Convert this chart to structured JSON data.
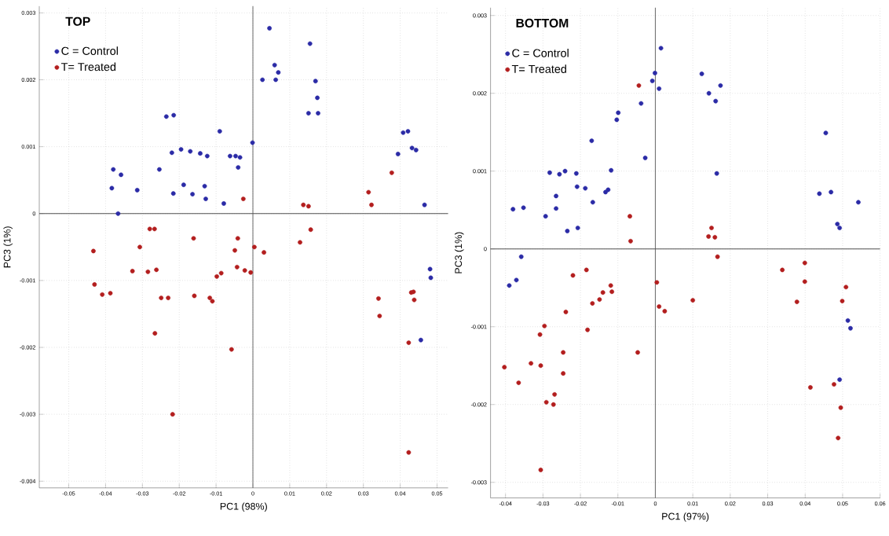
{
  "chart_data": [
    {
      "type": "scatter",
      "title": "TOP",
      "xlabel": "PC1 (98%)",
      "ylabel": "PC3 (1%)",
      "xlim": [
        -0.058,
        0.053
      ],
      "ylim": [
        -0.0041,
        0.0031
      ],
      "xticks": [
        -0.05,
        -0.04,
        -0.03,
        -0.02,
        -0.01,
        0,
        0.01,
        0.02,
        0.03,
        0.04,
        0.05
      ],
      "yticks": [
        -0.004,
        -0.003,
        -0.002,
        -0.001,
        0,
        0.001,
        0.002,
        0.003
      ],
      "grid": true,
      "legend": "top left",
      "marker": "circle",
      "ref_lines": [
        {
          "axis": "x",
          "value": 0,
          "color": "#707070"
        },
        {
          "axis": "y",
          "value": 0,
          "color": "#505050"
        }
      ],
      "series": [
        {
          "name": "C = Control",
          "color": "#2b2ba6",
          "x": [
            -0.0235,
            -0.0215,
            -0.009,
            -0.022,
            -0.0195,
            -0.017,
            -0.0143,
            -0.0124,
            -0.0062,
            -0.0047,
            -0.0035,
            -0.004,
            -0.0001,
            -0.0379,
            -0.0358,
            -0.0383,
            -0.0314,
            -0.0366,
            -0.0254,
            -0.0216,
            -0.0188,
            -0.0164,
            -0.0131,
            -0.0128,
            -0.0079,
            0.0045,
            0.0059,
            0.0069,
            0.0026,
            0.0062,
            0.0155,
            0.017,
            0.0175,
            0.0151,
            0.0177,
            0.0408,
            0.0421,
            0.0394,
            0.0432,
            0.0443,
            0.0466,
            0.0481,
            0.0483,
            0.0456
          ],
          "values": [
            0.00145,
            0.00147,
            0.00123,
            0.00091,
            0.00096,
            0.00093,
            0.0009,
            0.00086,
            0.00086,
            0.00086,
            0.00084,
            0.00069,
            0.00106,
            0.00066,
            0.00058,
            0.00038,
            0.00035,
            0,
            0.00066,
            0.0003,
            0.00043,
            0.00029,
            0.00041,
            0.00022,
            0.00015,
            0.00277,
            0.00222,
            0.00211,
            0.002,
            0.002,
            0.00254,
            0.00198,
            0.00173,
            0.0015,
            0.0015,
            0.00121,
            0.00123,
            0.00089,
            0.00098,
            0.00095,
            0.00013,
            -0.00083,
            -0.00096,
            -0.00189
          ]
        },
        {
          "name": "T= Treated",
          "color": "#b31e1e",
          "x": [
            -0.0433,
            -0.043,
            -0.0409,
            -0.0387,
            -0.0307,
            -0.0327,
            -0.0285,
            -0.0262,
            -0.028,
            -0.0267,
            -0.0249,
            -0.023,
            -0.0266,
            -0.0218,
            -0.0161,
            -0.0159,
            -0.0117,
            -0.011,
            -0.0058,
            -0.0041,
            -0.0049,
            -0.0043,
            -0.0098,
            -0.0086,
            -0.0026,
            -0.0022,
            -0.0006,
            0.0004,
            0.003,
            0.0128,
            0.0157,
            0.0137,
            0.0151,
            0.0314,
            0.0322,
            0.0377,
            0.0341,
            0.0344,
            0.043,
            0.0436,
            0.0438,
            0.0423,
            0.0423
          ],
          "values": [
            -0.00056,
            -0.00106,
            -0.00121,
            -0.00119,
            -0.0005,
            -0.00086,
            -0.00087,
            -0.00084,
            -0.00023,
            -0.00023,
            -0.00126,
            -0.00126,
            -0.00179,
            -0.003,
            -0.00037,
            -0.00123,
            -0.00126,
            -0.00131,
            -0.00203,
            -0.00037,
            -0.00055,
            -0.0008,
            -0.00094,
            -0.00089,
            0.00022,
            -0.00085,
            -0.00088,
            -0.0005,
            -0.00058,
            -0.00043,
            -0.00024,
            0.00013,
            0.00011,
            0.00032,
            0.00013,
            0.00061,
            -0.00127,
            -0.00153,
            -0.00118,
            -0.00117,
            -0.00129,
            -0.00193,
            -0.00357
          ]
        }
      ]
    },
    {
      "type": "scatter",
      "title": "BOTTOM",
      "xlabel": "PC1 (97%)",
      "ylabel": "PC3 (1%)",
      "xlim": [
        -0.044,
        0.06
      ],
      "ylim": [
        -0.0032,
        0.0031
      ],
      "xticks": [
        -0.04,
        -0.03,
        -0.02,
        -0.01,
        0,
        0.01,
        0.02,
        0.03,
        0.04,
        0.05,
        0.06
      ],
      "yticks": [
        -0.003,
        -0.002,
        -0.001,
        0,
        0.001,
        0.002,
        0.003
      ],
      "grid": true,
      "legend": "top left",
      "marker": "circle",
      "ref_lines": [
        {
          "axis": "x",
          "value": 0,
          "color": "#707070"
        },
        {
          "axis": "y",
          "value": 0,
          "color": "#505050"
        }
      ],
      "series": [
        {
          "name": "C = Control",
          "color": "#2b2ba6",
          "x": [
            -0.038,
            -0.0352,
            -0.0358,
            -0.039,
            -0.0371,
            -0.0293,
            -0.0265,
            -0.0265,
            -0.0282,
            -0.0256,
            -0.0241,
            -0.0211,
            -0.0235,
            -0.0207,
            -0.0209,
            -0.0187,
            -0.0167,
            -0.017,
            -0.0133,
            -0.0126,
            -0.0118,
            -0.0099,
            -0.0103,
            -0.0038,
            -0.0027,
            -0.0001,
            -0.0008,
            0.001,
            0.0015,
            0.0124,
            0.0174,
            0.0143,
            0.0161,
            0.0164,
            0.0455,
            0.0438,
            0.0469,
            0.0542,
            0.0486,
            0.0492,
            0.0514,
            0.0521,
            0.0492
          ],
          "values": [
            0.00051,
            0.00053,
            -0.0001,
            -0.00047,
            -0.0004,
            0.00042,
            0.00068,
            0.00052,
            0.00098,
            0.00096,
            0.001,
            0.00097,
            0.00023,
            0.00027,
            0.0008,
            0.00078,
            0.0006,
            0.00139,
            0.00073,
            0.00076,
            0.00101,
            0.00175,
            0.00166,
            0.00187,
            0.00117,
            0.00226,
            0.00216,
            0.00206,
            0.00258,
            0.00225,
            0.0021,
            0.002,
            0.0019,
            0.00097,
            0.00149,
            0.00071,
            0.00073,
            0.0006,
            0.00032,
            0.00027,
            -0.00092,
            -0.00102,
            -0.00168
          ]
        },
        {
          "name": "T= Treated",
          "color": "#b31e1e",
          "x": [
            -0.0403,
            -0.0365,
            -0.0332,
            -0.0306,
            -0.0308,
            -0.0296,
            -0.0291,
            -0.0272,
            -0.0269,
            -0.0246,
            -0.0246,
            -0.0306,
            -0.0239,
            -0.022,
            -0.0184,
            -0.0168,
            -0.014,
            -0.0149,
            -0.0119,
            -0.0116,
            -0.0181,
            -0.0047,
            -0.0068,
            -0.0066,
            -0.0044,
            0.0004,
            0.001,
            0.0025,
            0.015,
            0.0142,
            0.0159,
            0.0166,
            0.01,
            0.0339,
            0.0399,
            0.0399,
            0.0378,
            0.0509,
            0.0499,
            0.0414,
            0.0477,
            0.0495,
            0.0488
          ],
          "values": [
            -0.00152,
            -0.00172,
            -0.00147,
            -0.0015,
            -0.0011,
            -0.00099,
            -0.00197,
            -0.002,
            -0.00187,
            -0.00133,
            -0.0016,
            -0.00284,
            -0.00081,
            -0.00034,
            -0.00027,
            -0.0007,
            -0.00056,
            -0.00065,
            -0.00047,
            -0.00055,
            -0.00104,
            -0.00133,
            0.00042,
            0.0001,
            0.0021,
            -0.00043,
            -0.00074,
            -0.0008,
            0.00027,
            0.00016,
            0.00015,
            -0.0001,
            -0.00066,
            -0.00027,
            -0.00018,
            -0.00042,
            -0.00068,
            -0.00049,
            -0.00067,
            -0.00178,
            -0.00174,
            -0.00204,
            -0.00243
          ]
        }
      ]
    }
  ]
}
